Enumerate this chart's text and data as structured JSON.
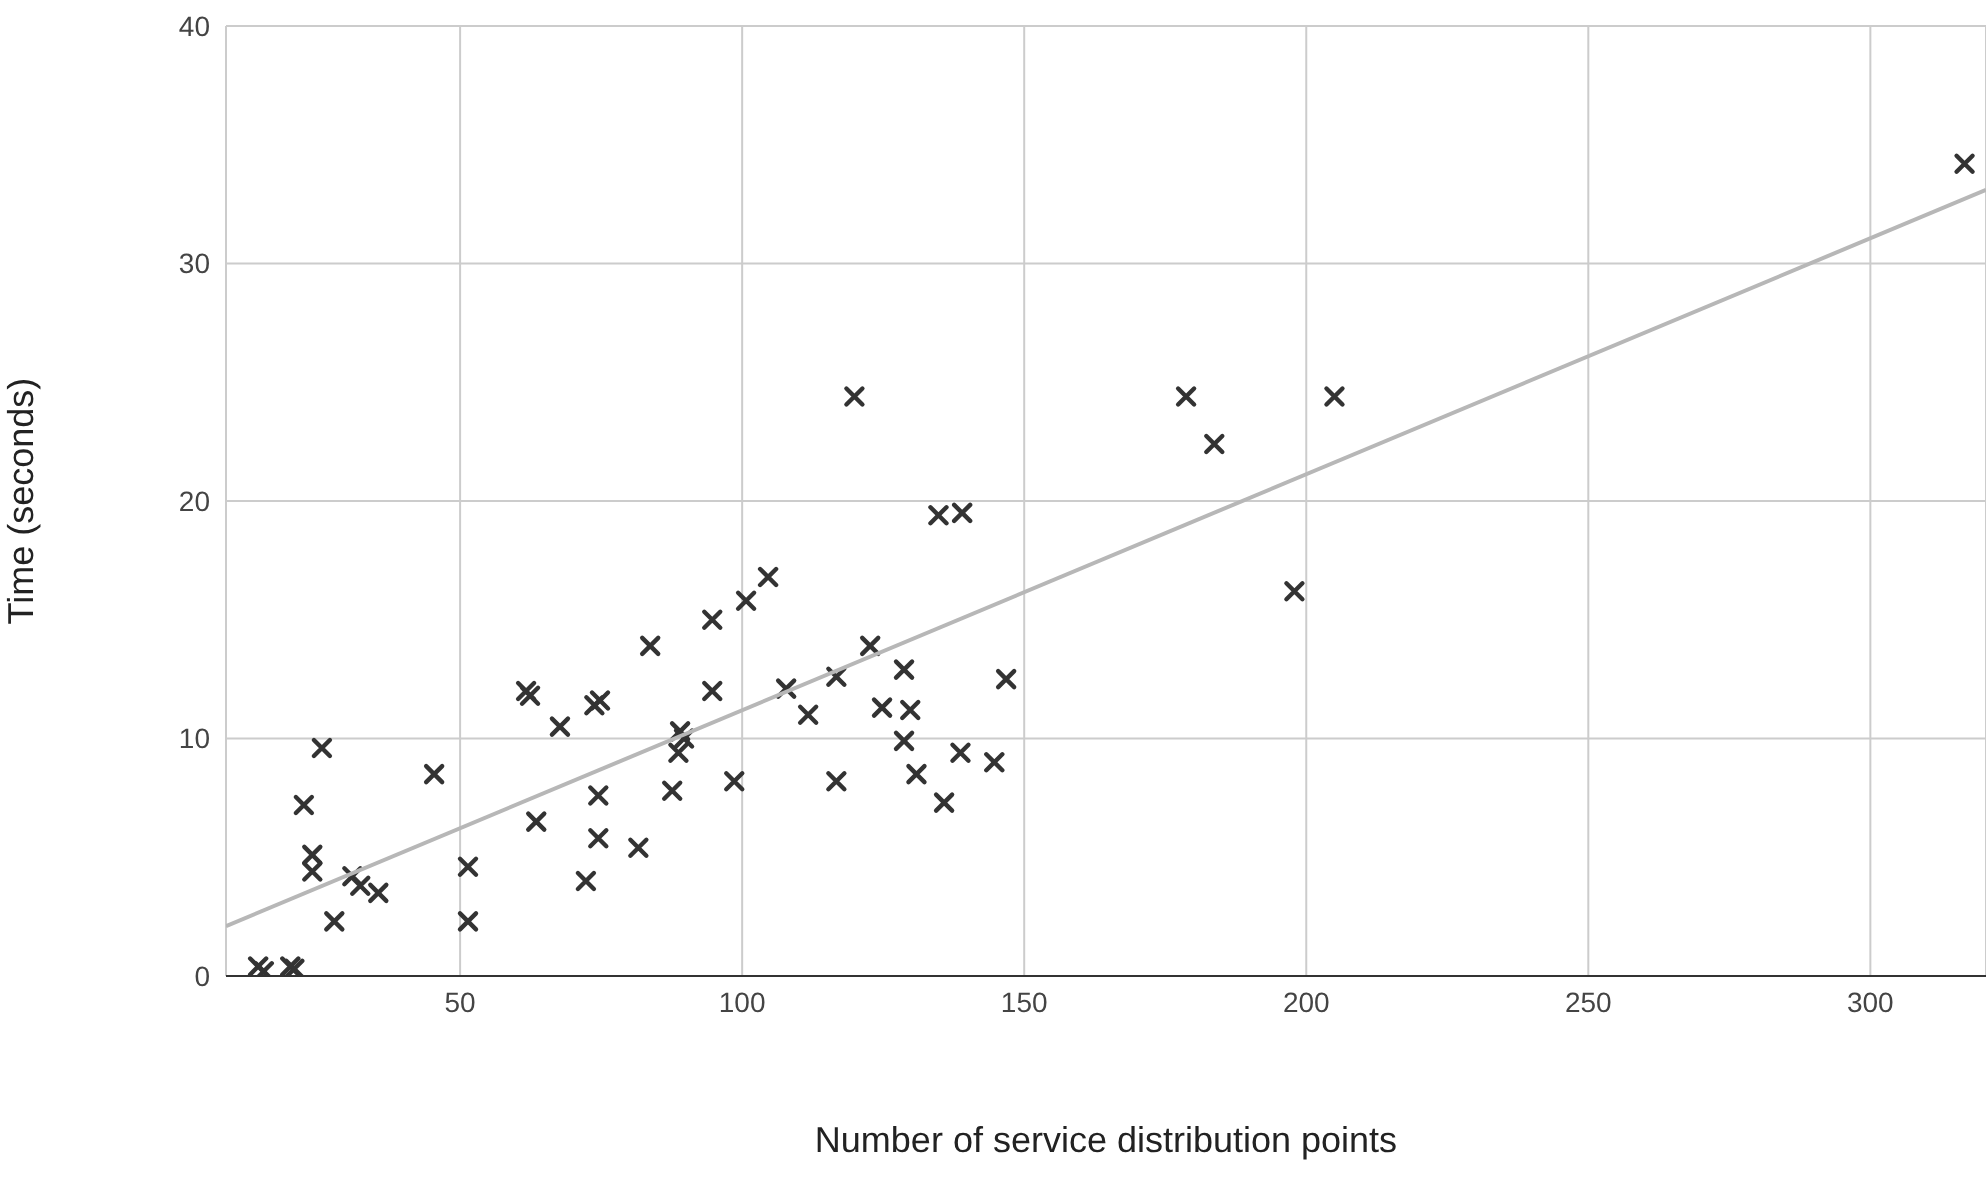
{
  "chart_data": {
    "type": "scatter",
    "xlabel": "Number of service distribution points",
    "ylabel": "Time (seconds)",
    "xlim": [
      8.5,
      320.5
    ],
    "xticks": [
      50,
      100,
      150,
      200,
      250,
      300
    ],
    "ylim": [
      0,
      40
    ],
    "yticks": [
      0,
      10,
      20,
      30,
      40
    ],
    "grid": true,
    "marker": "cross",
    "series": [
      {
        "color": "#333333",
        "x": [
          14.2,
          15.2,
          19.9,
          20.6,
          22.3,
          23.8,
          23.8,
          25.5,
          27.7,
          30.9,
          32.3,
          35.5,
          45.4,
          51.4,
          51.4,
          61.7,
          62.4,
          63.5,
          67.7,
          72.3,
          73.8,
          74.8,
          74.5,
          74.5,
          81.6,
          83.7,
          87.6,
          88.7,
          89.0,
          89.7,
          94.7,
          94.7,
          98.6,
          100.7,
          104.6,
          107.8,
          111.7,
          116.7,
          116.7,
          119.9,
          122.7,
          124.8,
          128.7,
          128.7,
          129.8,
          130.9,
          134.8,
          139.0,
          135.8,
          138.7,
          144.7,
          146.8,
          178.7,
          183.7,
          197.9,
          205.0,
          316.7
        ],
        "values": [
          0.4,
          0.2,
          0.4,
          0.3,
          7.2,
          5.1,
          4.4,
          9.6,
          2.3,
          4.2,
          3.8,
          3.5,
          8.5,
          4.6,
          2.3,
          12.0,
          11.8,
          6.5,
          10.5,
          4.0,
          11.4,
          11.6,
          7.6,
          5.8,
          5.4,
          13.9,
          7.8,
          9.4,
          10.3,
          10.0,
          15.0,
          12.0,
          8.2,
          15.8,
          16.8,
          12.1,
          11.0,
          12.6,
          8.2,
          24.4,
          13.9,
          11.3,
          12.9,
          9.9,
          11.2,
          8.5,
          19.4,
          19.5,
          7.3,
          9.4,
          9.0,
          12.5,
          24.4,
          22.4,
          16.2,
          24.4,
          34.2
        ]
      },
      {
        "type": "line",
        "color": "#b7b7b7",
        "marker": "none",
        "x": [
          8.5,
          320.5
        ],
        "values": [
          2.1,
          33.1
        ]
      }
    ]
  }
}
